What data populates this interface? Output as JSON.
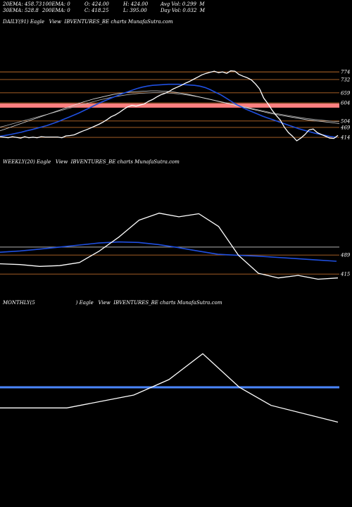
{
  "header": {
    "row1": [
      "20EMA: 458.73",
      "100EMA: 0",
      "O: 424.00",
      "H: 424.00",
      "Avg Vol: 0.299  M"
    ],
    "row2": [
      "30EMA: 528.8",
      "200EMA: 0",
      "C: 418.25",
      "L: 395.00",
      "Day Vol: 0.032  M"
    ]
  },
  "colors": {
    "background": "#000000",
    "price": "#ffffff",
    "ema_blue": "#1f4fe0",
    "ema_gray": "#b0b0b0",
    "level_line": "#b86a2a",
    "sr_band": "#ff8080",
    "monthly_blue": "#4a86ff"
  },
  "chart_data": [
    {
      "type": "line",
      "title": "DAILY(91) Eagle   View  IBVENTURES_BE charts MunafaSutra.com",
      "levels": [
        774,
        732,
        659,
        604,
        504,
        469,
        414
      ],
      "support_band": 589,
      "series": [
        {
          "values": [
            418,
            415,
            412,
            418,
            414,
            410,
            418,
            412,
            415,
            412,
            418,
            416,
            416,
            416,
            416,
            412,
            422,
            424,
            428,
            438,
            448,
            456,
            466,
            476,
            486,
            498,
            512,
            528,
            538,
            552,
            568,
            582,
            590,
            586,
            592,
            598,
            612,
            622,
            636,
            648,
            656,
            666,
            680,
            690,
            700,
            712,
            722,
            734,
            746,
            758,
            766,
            772,
            778,
            770,
            774,
            766,
            780,
            778,
            760,
            750,
            742,
            730,
            708,
            680,
            630,
            600,
            565,
            535,
            510,
            470,
            440,
            420,
            395,
            410,
            430,
            455,
            460,
            440,
            430,
            420,
            410,
            408,
            425
          ]
        },
        {
          "values": [
            420,
            425,
            430,
            436,
            442,
            450,
            456,
            464,
            472,
            480,
            490,
            500,
            512,
            524,
            536,
            548,
            562,
            576,
            590,
            604,
            616,
            628,
            640,
            652,
            662,
            672,
            682,
            690,
            696,
            700,
            702,
            704,
            706,
            706,
            706,
            704,
            702,
            700,
            696,
            688,
            676,
            662,
            648,
            630,
            612,
            594,
            580,
            566,
            554,
            542,
            530,
            520,
            510,
            500,
            490,
            480,
            470,
            460,
            452,
            444,
            436,
            430,
            424,
            418,
            414
          ]
        },
        {
          "values": [
            450,
            462,
            474,
            486,
            498,
            510,
            522,
            534,
            546,
            558,
            570,
            582,
            594,
            606,
            616,
            626,
            634,
            642,
            650,
            656,
            660,
            664,
            666,
            668,
            670,
            670,
            668,
            666,
            662,
            656,
            650,
            642,
            634,
            626,
            618,
            610,
            602,
            594,
            586,
            578,
            570,
            562,
            554,
            546,
            540,
            534,
            528,
            522,
            516,
            510,
            506,
            502,
            498,
            494,
            490
          ]
        },
        {
          "values": [
            470,
            480,
            490,
            500,
            510,
            520,
            530,
            540,
            550,
            560,
            570,
            580,
            590,
            600,
            610,
            620,
            628,
            636,
            642,
            648,
            652,
            656,
            658,
            660,
            660,
            658,
            656,
            652,
            648,
            642,
            636,
            628,
            620,
            612,
            604,
            596,
            588,
            580,
            572,
            564,
            556,
            548,
            542,
            536,
            530,
            524,
            518,
            514,
            510,
            506,
            502,
            500
          ]
        }
      ]
    },
    {
      "type": "line",
      "title": "WEEKLY(20) Eagle   View  IBVENTURES_BE charts MunafaSutra.com",
      "levels": [
        489,
        415
      ],
      "series": [
        {
          "values": [
            455,
            452,
            445,
            448,
            460,
            505,
            560,
            625,
            652,
            638,
            650,
            600,
            488,
            418,
            400,
            410,
            395,
            400
          ]
        },
        {
          "values": [
            500,
            505,
            512,
            520,
            528,
            536,
            540,
            538,
            530,
            518,
            505,
            492,
            488,
            485,
            480,
            475,
            470,
            465
          ]
        }
      ]
    },
    {
      "type": "line",
      "title": "MONTHLY(5                          ) Eagle   View  IBVENTURES_BE charts MunafaSutra.com",
      "series": [
        {
          "values": [
            450,
            450,
            500,
            560,
            660,
            530,
            460,
            395
          ]
        }
      ]
    }
  ]
}
